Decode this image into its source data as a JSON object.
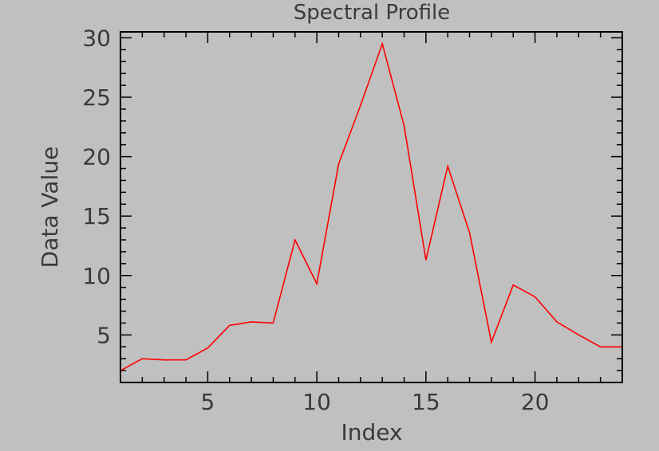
{
  "chart_data": {
    "type": "line",
    "title": "Spectral Profile",
    "xlabel": "Index",
    "ylabel": "Data Value",
    "xlim": [
      1,
      24
    ],
    "ylim": [
      1,
      30.5
    ],
    "xticks": [
      5,
      10,
      15,
      20
    ],
    "yticks": [
      5,
      10,
      15,
      20,
      25,
      30
    ],
    "x_minor_step": 1,
    "y_minor_step": 1,
    "grid": false,
    "legend": "none",
    "series": [
      {
        "color": "#ff0000",
        "x": [
          1,
          2,
          3,
          4,
          5,
          6,
          7,
          8,
          9,
          10,
          11,
          12,
          13,
          14,
          15,
          16,
          17,
          18,
          19,
          20,
          21,
          22,
          23,
          24
        ],
        "y": [
          2.0,
          3.0,
          2.9,
          2.9,
          3.9,
          5.8,
          6.1,
          6.0,
          13.0,
          9.3,
          19.4,
          24.3,
          29.5,
          22.6,
          11.3,
          19.2,
          13.6,
          4.4,
          9.2,
          8.2,
          6.1,
          5.0,
          4.0,
          4.0
        ]
      }
    ]
  }
}
